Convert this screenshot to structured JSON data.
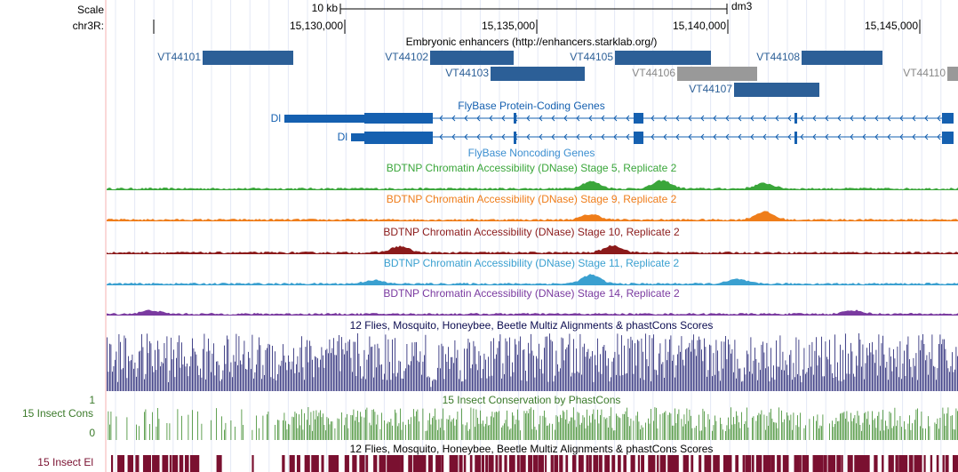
{
  "scale": {
    "label": "Scale",
    "length": "10 kb",
    "assembly": "dm3"
  },
  "ruler": {
    "chrom": "chr3R:",
    "ticks": [
      "15,130,000",
      "15,135,000",
      "15,140,000",
      "15,145,000"
    ]
  },
  "enhancers": {
    "title": "Embryonic enhancers (http://enhancers.starklab.org/)",
    "items": [
      "VT44101",
      "VT44102",
      "VT44103",
      "VT44105",
      "VT44106",
      "VT44107",
      "VT44108",
      "VT44110"
    ]
  },
  "genes": {
    "title": "FlyBase Protein-Coding Genes",
    "labels": [
      "Dl",
      "Dl"
    ]
  },
  "noncoding": {
    "title": "FlyBase Noncoding Genes"
  },
  "dnase": [
    {
      "title": "BDTNP Chromatin Accessibility (DNase) Stage 5, Replicate 2"
    },
    {
      "title": "BDTNP Chromatin Accessibility (DNase) Stage 9, Replicate 2"
    },
    {
      "title": "BDTNP Chromatin Accessibility (DNase) Stage 10, Replicate 2"
    },
    {
      "title": "BDTNP Chromatin Accessibility (DNase) Stage 11, Replicate 2"
    },
    {
      "title": "BDTNP Chromatin Accessibility (DNase) Stage 14, Replicate 2"
    }
  ],
  "multiz": {
    "title": "12 Flies, Mosquito, Honeybee, Beetle Multiz Alignments & phastCons Scores"
  },
  "phastcons": {
    "title": "15 Insect Conservation by PhastCons",
    "side_label": "15 Insect Cons",
    "top": "1",
    "bottom": "0"
  },
  "elements": {
    "title": "12 Flies, Mosquito, Honeybee, Beetle Multiz Alignments & phastCons Scores",
    "side_label": "15 Insect El"
  }
}
